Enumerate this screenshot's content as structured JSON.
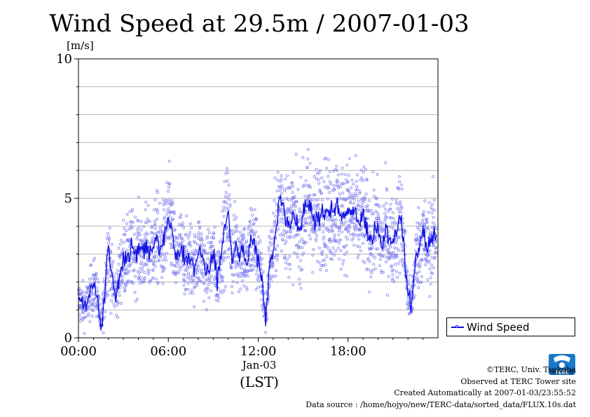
{
  "chart_data": {
    "type": "scatter",
    "title": "Wind Speed at 29.5m / 2007-01-03",
    "ylabel": "[m/s]",
    "ylim": [
      0,
      10
    ],
    "yticks": [
      "0",
      "5",
      "10"
    ],
    "xticks": [
      "00:00",
      "06:00",
      "12:00",
      "18:00"
    ],
    "xdate": "Jan-03",
    "xunit": "(LST)",
    "xlim_hours": [
      0,
      24
    ],
    "grid": true,
    "legend": {
      "label": "Wind Speed",
      "placement": "bottom-right outside"
    },
    "series_color": "#1010e0",
    "scatter_color": "#7878f0",
    "series": [
      {
        "name": "Wind Speed",
        "x_hours": [
          0.0,
          0.25,
          0.5,
          0.75,
          1.0,
          1.25,
          1.5,
          1.75,
          1.9,
          2.0,
          2.25,
          2.5,
          2.75,
          3.0,
          3.25,
          3.5,
          3.75,
          4.0,
          4.25,
          4.5,
          4.75,
          5.0,
          5.25,
          5.5,
          5.75,
          6.0,
          6.25,
          6.5,
          6.75,
          7.0,
          7.25,
          7.5,
          7.75,
          8.0,
          8.25,
          8.5,
          8.75,
          9.0,
          9.25,
          9.5,
          9.75,
          10.0,
          10.25,
          10.5,
          10.75,
          11.0,
          11.25,
          11.5,
          11.75,
          12.0,
          12.25,
          12.5,
          12.75,
          13.0,
          13.25,
          13.5,
          13.75,
          14.0,
          14.25,
          14.5,
          14.75,
          15.0,
          15.25,
          15.5,
          15.75,
          16.0,
          16.25,
          16.5,
          16.75,
          17.0,
          17.25,
          17.5,
          17.75,
          18.0,
          18.25,
          18.5,
          18.75,
          19.0,
          19.25,
          19.5,
          19.75,
          20.0,
          20.25,
          20.5,
          20.75,
          21.0,
          21.25,
          21.5,
          21.75,
          22.0,
          22.25,
          22.5,
          22.75,
          23.0,
          23.25,
          23.5,
          23.75,
          24.0
        ],
        "values": [
          1.3,
          1.2,
          1.1,
          1.5,
          1.9,
          1.6,
          0.4,
          1.5,
          2.8,
          3.3,
          2.0,
          1.5,
          2.3,
          2.9,
          2.8,
          3.2,
          3.0,
          3.2,
          2.9,
          3.3,
          3.0,
          3.3,
          3.6,
          3.1,
          3.5,
          4.3,
          3.8,
          2.6,
          3.2,
          3.0,
          2.7,
          2.9,
          2.5,
          3.1,
          2.9,
          2.3,
          2.6,
          3.0,
          2.0,
          2.9,
          3.8,
          4.5,
          2.8,
          3.4,
          3.0,
          3.2,
          2.5,
          3.5,
          3.4,
          2.8,
          2.0,
          0.6,
          2.7,
          3.1,
          4.2,
          4.9,
          4.5,
          4.0,
          4.4,
          4.1,
          3.6,
          4.3,
          4.8,
          4.6,
          4.2,
          4.3,
          4.6,
          4.5,
          4.4,
          4.6,
          4.7,
          4.2,
          4.5,
          4.6,
          4.4,
          4.3,
          4.1,
          4.4,
          4.0,
          3.5,
          3.8,
          4.0,
          3.2,
          3.9,
          3.6,
          3.4,
          3.8,
          4.4,
          3.2,
          1.5,
          1.2,
          2.8,
          3.3,
          3.7,
          3.2,
          3.4,
          3.7,
          3.6
        ]
      }
    ]
  },
  "footer": {
    "copyright": "©TERC, Univ. Tsukuba",
    "observed": "Observed at TERC Tower site",
    "created": "Created Automatically at 2007-01-03/23:55:52",
    "source": "Data source : /home/hojyo/new/TERC-data/sorted_data/FLUX.10s.dat",
    "logo_text": "TERC",
    "logo_color": "#1a78c8"
  }
}
